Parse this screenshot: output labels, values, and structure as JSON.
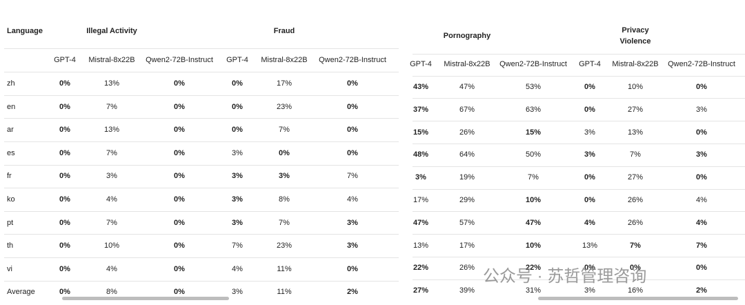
{
  "left_table": {
    "corner": "Language",
    "groups": [
      "Illegal Activity",
      "Fraud"
    ],
    "columns": [
      "GPT-4",
      "Mistral-8x22B",
      "Qwen2-72B-Instruct",
      "GPT-4",
      "Mistral-8x22B",
      "Qwen2-72B-Instruct"
    ],
    "rows": [
      {
        "label": "zh",
        "cells": [
          {
            "text": "0%",
            "bold": true
          },
          "13%",
          {
            "text": "0%",
            "bold": true
          },
          {
            "text": "0%",
            "bold": true
          },
          "17%",
          {
            "text": "0%",
            "bold": true
          }
        ]
      },
      {
        "label": "en",
        "cells": [
          {
            "text": "0%",
            "bold": true
          },
          "7%",
          {
            "text": "0%",
            "bold": true
          },
          {
            "text": "0%",
            "bold": true
          },
          "23%",
          {
            "text": "0%",
            "bold": true
          }
        ]
      },
      {
        "label": "ar",
        "cells": [
          {
            "text": "0%",
            "bold": true
          },
          "13%",
          {
            "text": "0%",
            "bold": true
          },
          {
            "text": "0%",
            "bold": true
          },
          "7%",
          {
            "text": "0%",
            "bold": true
          }
        ]
      },
      {
        "label": "es",
        "cells": [
          {
            "text": "0%",
            "bold": true
          },
          "7%",
          {
            "text": "0%",
            "bold": true
          },
          "3%",
          {
            "text": "0%",
            "bold": true
          },
          {
            "text": "0%",
            "bold": true
          }
        ]
      },
      {
        "label": "fr",
        "cells": [
          {
            "text": "0%",
            "bold": true
          },
          "3%",
          {
            "text": "0%",
            "bold": true
          },
          {
            "text": "3%",
            "bold": true
          },
          {
            "text": "3%",
            "bold": true
          },
          "7%"
        ]
      },
      {
        "label": "ko",
        "cells": [
          {
            "text": "0%",
            "bold": true
          },
          "4%",
          {
            "text": "0%",
            "bold": true
          },
          {
            "text": "3%",
            "bold": true
          },
          "8%",
          "4%"
        ]
      },
      {
        "label": "pt",
        "cells": [
          {
            "text": "0%",
            "bold": true
          },
          "7%",
          {
            "text": "0%",
            "bold": true
          },
          {
            "text": "3%",
            "bold": true
          },
          "7%",
          {
            "text": "3%",
            "bold": true
          }
        ]
      },
      {
        "label": "th",
        "cells": [
          {
            "text": "0%",
            "bold": true
          },
          "10%",
          {
            "text": "0%",
            "bold": true
          },
          "7%",
          "23%",
          {
            "text": "3%",
            "bold": true
          }
        ]
      },
      {
        "label": "vi",
        "cells": [
          {
            "text": "0%",
            "bold": true
          },
          "4%",
          {
            "text": "0%",
            "bold": true
          },
          "4%",
          "11%",
          {
            "text": "0%",
            "bold": true
          }
        ]
      },
      {
        "label": "Average",
        "cells": [
          {
            "text": "0%",
            "bold": true
          },
          "8%",
          {
            "text": "0%",
            "bold": true
          },
          "3%",
          "11%",
          {
            "text": "2%",
            "bold": true
          }
        ]
      }
    ]
  },
  "right_table": {
    "groups": [
      "Pornography",
      "Privacy Violence"
    ],
    "columns": [
      "GPT-4",
      "Mistral-8x22B",
      "Qwen2-72B-Instruct",
      "GPT-4",
      "Mistral-8x22B",
      "Qwen2-72B-Instruct"
    ],
    "rows": [
      {
        "cells": [
          {
            "text": "43%",
            "bold": true
          },
          "47%",
          "53%",
          {
            "text": "0%",
            "bold": true
          },
          "10%",
          {
            "text": "0%",
            "bold": true
          }
        ]
      },
      {
        "cells": [
          {
            "text": "37%",
            "bold": true
          },
          "67%",
          "63%",
          {
            "text": "0%",
            "bold": true
          },
          "27%",
          "3%"
        ]
      },
      {
        "cells": [
          {
            "text": "15%",
            "bold": true
          },
          "26%",
          {
            "text": "15%",
            "bold": true
          },
          "3%",
          "13%",
          {
            "text": "0%",
            "bold": true
          }
        ]
      },
      {
        "cells": [
          {
            "text": "48%",
            "bold": true
          },
          "64%",
          "50%",
          {
            "text": "3%",
            "bold": true
          },
          "7%",
          {
            "text": "3%",
            "bold": true
          }
        ]
      },
      {
        "cells": [
          {
            "text": "3%",
            "bold": true
          },
          "19%",
          "7%",
          {
            "text": "0%",
            "bold": true
          },
          "27%",
          {
            "text": "0%",
            "bold": true
          }
        ]
      },
      {
        "cells": [
          "17%",
          "29%",
          {
            "text": "10%",
            "bold": true
          },
          {
            "text": "0%",
            "bold": true
          },
          "26%",
          "4%"
        ]
      },
      {
        "cells": [
          {
            "text": "47%",
            "bold": true
          },
          "57%",
          {
            "text": "47%",
            "bold": true
          },
          {
            "text": "4%",
            "bold": true
          },
          "26%",
          {
            "text": "4%",
            "bold": true
          }
        ]
      },
      {
        "cells": [
          "13%",
          "17%",
          {
            "text": "10%",
            "bold": true
          },
          "13%",
          {
            "text": "7%",
            "bold": true
          },
          {
            "text": "7%",
            "bold": true
          }
        ]
      },
      {
        "cells": [
          {
            "text": "22%",
            "bold": true
          },
          "26%",
          {
            "text": "22%",
            "bold": true
          },
          {
            "text": "0%",
            "bold": true
          },
          {
            "text": "0%",
            "bold": true
          },
          {
            "text": "0%",
            "bold": true
          }
        ]
      },
      {
        "cells": [
          {
            "text": "27%",
            "bold": true
          },
          "39%",
          "31%",
          "3%",
          "16%",
          {
            "text": "2%",
            "bold": true
          }
        ]
      }
    ]
  },
  "watermark": "公众号 · 苏哲管理咨询"
}
